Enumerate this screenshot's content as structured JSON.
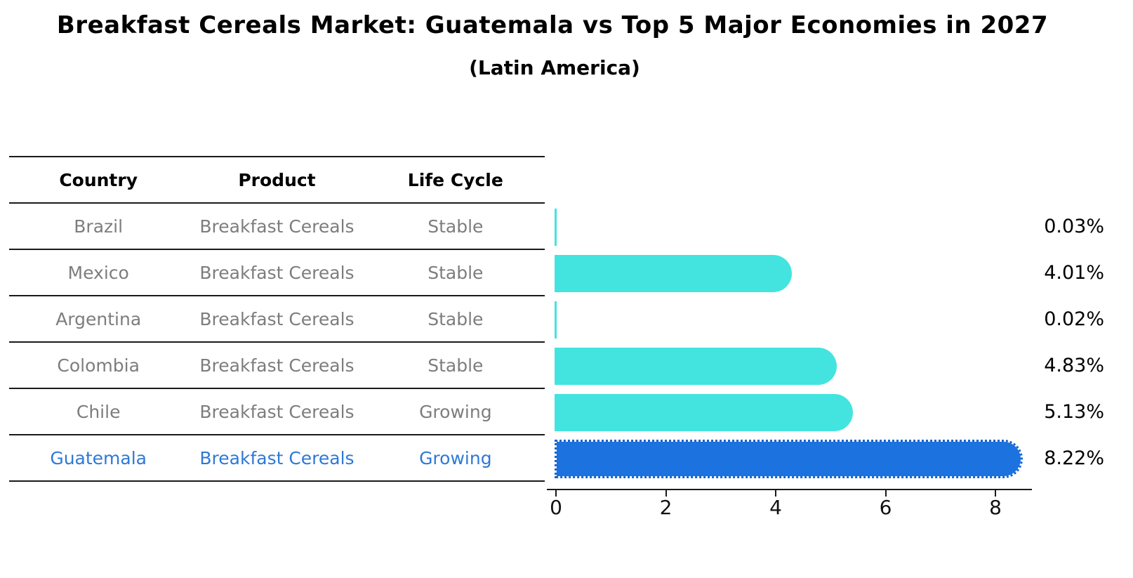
{
  "title": "Breakfast Cereals Market: Guatemala vs Top 5 Major Economies in 2027",
  "subtitle": "(Latin America)",
  "colors": {
    "bar_default": "#43E4DF",
    "bar_highlight": "#1C72DE",
    "bar_highlight_border": "#1765CB",
    "row_text_gray": "#7D7D7D",
    "highlight_text_blue": "#2E79D6",
    "line_black": "#1A1A1A"
  },
  "table": {
    "headers": [
      "Country",
      "Product",
      "Life Cycle"
    ],
    "rows": [
      {
        "country": "Brazil",
        "product": "Breakfast Cereals",
        "life_cycle": "Stable",
        "highlight": false
      },
      {
        "country": "Mexico",
        "product": "Breakfast Cereals",
        "life_cycle": "Stable",
        "highlight": false
      },
      {
        "country": "Argentina",
        "product": "Breakfast Cereals",
        "life_cycle": "Stable",
        "highlight": false
      },
      {
        "country": "Colombia",
        "product": "Breakfast Cereals",
        "life_cycle": "Stable",
        "highlight": false
      },
      {
        "country": "Chile",
        "product": "Breakfast Cereals",
        "life_cycle": "Growing",
        "highlight": false
      },
      {
        "country": "Guatemala",
        "product": "Breakfast Cereals",
        "life_cycle": "Growing",
        "highlight": true
      }
    ]
  },
  "chart_data": {
    "type": "bar",
    "orientation": "horizontal",
    "title": "Breakfast Cereals Market: Guatemala vs Top 5 Major Economies in 2027",
    "subtitle": "(Latin America)",
    "categories": [
      "Brazil",
      "Mexico",
      "Argentina",
      "Colombia",
      "Chile",
      "Guatemala"
    ],
    "values": [
      0.03,
      4.01,
      0.02,
      4.83,
      5.13,
      8.22
    ],
    "value_labels": [
      "0.03%",
      "4.01%",
      "0.02%",
      "4.83%",
      "5.13%",
      "8.22%"
    ],
    "highlight_category": "Guatemala",
    "x_ticks": [
      0,
      2,
      4,
      6,
      8
    ],
    "xlim": [
      0,
      8.66
    ],
    "xlabel": "",
    "ylabel": "",
    "grid": false,
    "legend": "none"
  }
}
